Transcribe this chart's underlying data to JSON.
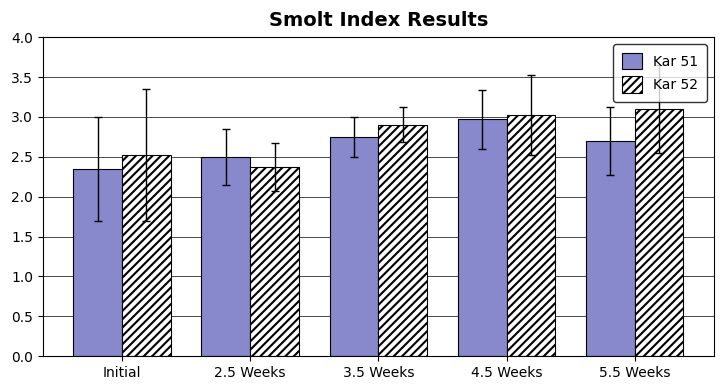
{
  "title": "Smolt Index Results",
  "categories": [
    "Initial",
    "2.5 Weeks",
    "3.5 Weeks",
    "4.5 Weeks",
    "5.5 Weeks"
  ],
  "kar51_values": [
    2.35,
    2.5,
    2.75,
    2.97,
    2.7
  ],
  "kar52_values": [
    2.52,
    2.37,
    2.9,
    3.02,
    3.1
  ],
  "kar51_errors": [
    0.65,
    0.35,
    0.25,
    0.37,
    0.43
  ],
  "kar52_errors": [
    0.83,
    0.3,
    0.22,
    0.5,
    0.55
  ],
  "bar_color_solid": "#8888cc",
  "bar_color_hatch_face": "#ffffff",
  "bar_color_hatch_lines": "#8888cc",
  "ylim": [
    0,
    4.0
  ],
  "yticks": [
    0.0,
    0.5,
    1.0,
    1.5,
    2.0,
    2.5,
    3.0,
    3.5,
    4.0
  ],
  "bar_width": 0.38,
  "legend_labels": [
    "Kar 51",
    "Kar 52"
  ],
  "bg_color": "#ffffff",
  "plot_bg_color": "#ffffff",
  "title_fontsize": 14,
  "tick_fontsize": 10,
  "legend_fontsize": 10
}
